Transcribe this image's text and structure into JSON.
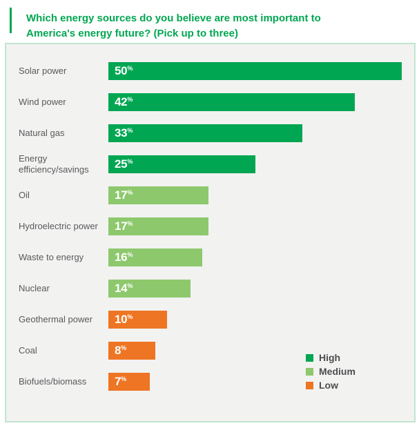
{
  "title": "Which energy sources do you believe are most important to America's energy future? (Pick up to three)",
  "accent_color": "#00a651",
  "panel": {
    "background": "#f2f2f1",
    "border_color": "#c2e5cf"
  },
  "chart_data": {
    "type": "bar",
    "orientation": "horizontal",
    "title": "Which energy sources do you believe are most important to America's energy future? (Pick up to three)",
    "unit": "%",
    "categories": [
      "Solar power",
      "Wind power",
      "Natural gas",
      "Energy efficiency/savings",
      "Oil",
      "Hydroelectric power",
      "Waste to energy",
      "Nuclear",
      "Geothermal power",
      "Coal",
      "Biofuels/biomass"
    ],
    "values": [
      50,
      42,
      33,
      25,
      17,
      17,
      16,
      14,
      10,
      8,
      7
    ],
    "value_labels": [
      "50%",
      "42%",
      "33%",
      "25%",
      "17%",
      "17%",
      "16%",
      "14%",
      "10%",
      "8%",
      "7%"
    ],
    "tiers": [
      "high",
      "high",
      "high",
      "high",
      "medium",
      "medium",
      "medium",
      "medium",
      "low",
      "low",
      "low"
    ],
    "tier_colors": {
      "high": "#00a651",
      "medium": "#8dc86d",
      "low": "#ee7523"
    },
    "xlim": [
      0,
      52
    ],
    "grid": false,
    "value_label_position": "inside-left",
    "legend_position": "bottom-right",
    "legend": [
      {
        "label": "High",
        "color": "#00a651"
      },
      {
        "label": "Medium",
        "color": "#8dc86d"
      },
      {
        "label": "Low",
        "color": "#ee7523"
      }
    ]
  }
}
